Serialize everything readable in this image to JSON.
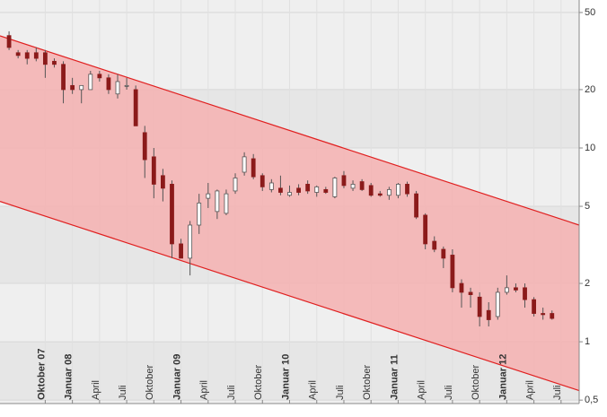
{
  "chart_data": {
    "type": "candlestick",
    "log_scale": true,
    "grid": true,
    "xlim": [
      "2007-05",
      "2012-09"
    ],
    "ylim": [
      0.48,
      58
    ],
    "yticks": [
      {
        "value": 0.5,
        "label": "0,5"
      },
      1,
      2,
      5,
      10,
      20,
      50
    ],
    "xticks": [
      {
        "value": "2007-10",
        "label": "Oktober 07"
      },
      {
        "value": "2008-01",
        "label": "Januar 08"
      },
      {
        "value": "2008-04",
        "label": "April"
      },
      {
        "value": "2008-07",
        "label": "Juli"
      },
      {
        "value": "2008-10",
        "label": "Oktober"
      },
      {
        "value": "2009-01",
        "label": "Januar 09"
      },
      {
        "value": "2009-04",
        "label": "April"
      },
      {
        "value": "2009-07",
        "label": "Juli"
      },
      {
        "value": "2009-10",
        "label": "Oktober"
      },
      {
        "value": "2010-01",
        "label": "Januar 10"
      },
      {
        "value": "2010-04",
        "label": "April"
      },
      {
        "value": "2010-07",
        "label": "Juli"
      },
      {
        "value": "2010-10",
        "label": "Oktober"
      },
      {
        "value": "2011-01",
        "label": "Januar 11"
      },
      {
        "value": "2011-04",
        "label": "April"
      },
      {
        "value": "2011-07",
        "label": "Juli"
      },
      {
        "value": "2011-10",
        "label": "Oktober"
      },
      {
        "value": "2012-01",
        "label": "Januar 12"
      },
      {
        "value": "2012-04",
        "label": "April"
      },
      {
        "value": "2012-07",
        "label": "Juli"
      }
    ],
    "up_color": "#ffffff",
    "down_color": "#8b1a1a",
    "channel": {
      "color": "#e02020",
      "fill": "#f4b0b0",
      "upper": [
        37.9,
        4.0
      ],
      "lower": [
        5.3,
        0.56
      ]
    },
    "candles": {
      "x": [
        "2007-06",
        "2007-07",
        "2007-08",
        "2007-09",
        "2007-10",
        "2007-11",
        "2007-12",
        "2008-01",
        "2008-02",
        "2008-03",
        "2008-04",
        "2008-05",
        "2008-06",
        "2008-07",
        "2008-08",
        "2008-09",
        "2008-10",
        "2008-11",
        "2008-12",
        "2009-01",
        "2009-02",
        "2009-03",
        "2009-04",
        "2009-05",
        "2009-06",
        "2009-07",
        "2009-08",
        "2009-09",
        "2009-10",
        "2009-11",
        "2009-12",
        "2010-01",
        "2010-02",
        "2010-03",
        "2010-04",
        "2010-05",
        "2010-06",
        "2010-07",
        "2010-08",
        "2010-09",
        "2010-10",
        "2010-11",
        "2010-12",
        "2011-01",
        "2011-02",
        "2011-03",
        "2011-04",
        "2011-05",
        "2011-06",
        "2011-07",
        "2011-08",
        "2011-09",
        "2011-10",
        "2011-11",
        "2011-12",
        "2012-01",
        "2012-02",
        "2012-03",
        "2012-04",
        "2012-05",
        "2012-06"
      ],
      "open": [
        38,
        31,
        31,
        31,
        31,
        28,
        27,
        21,
        20,
        20,
        24,
        23,
        19,
        21,
        20,
        12,
        9,
        7.2,
        6.5,
        3.2,
        2.7,
        4,
        5.5,
        4.7,
        4.6,
        6,
        7.5,
        8.8,
        7.2,
        6.1,
        6.2,
        5.7,
        6.2,
        6.5,
        5.9,
        6.1,
        5.6,
        7.2,
        6.2,
        6.7,
        6.4,
        5.8,
        5.7,
        5.7,
        6.5,
        5.8,
        4.5,
        3.3,
        3.0,
        2.8,
        2,
        1.8,
        1.7,
        1.45,
        1.35,
        1.8,
        1.9,
        1.9,
        1.65,
        1.4,
        1.4
      ],
      "high": [
        40,
        32,
        32,
        33,
        32,
        29,
        28,
        23,
        21,
        25,
        25,
        24,
        24,
        23,
        21,
        13,
        10,
        7.8,
        6.8,
        3.4,
        4.2,
        5.8,
        6.6,
        6.1,
        6.1,
        7.4,
        9.5,
        9.3,
        7.4,
        6.9,
        7.2,
        6.4,
        6.5,
        6.8,
        6.4,
        6.3,
        7.1,
        7.6,
        6.8,
        6.9,
        6.6,
        6,
        6.3,
        6.6,
        6.7,
        6,
        4.6,
        3.5,
        3.1,
        3,
        2.1,
        1.9,
        1.8,
        1.6,
        1.9,
        2.2,
        2,
        2,
        1.7,
        1.5,
        1.45
      ],
      "low": [
        32,
        29,
        27,
        28,
        23,
        26,
        17,
        19,
        17,
        20,
        22,
        19,
        18,
        20,
        13,
        7,
        5.5,
        5.3,
        2.7,
        2.7,
        2.2,
        3.6,
        4.9,
        4.3,
        4.5,
        5.8,
        7.2,
        6.9,
        6,
        5.9,
        5.7,
        5.6,
        5.7,
        5.8,
        5.6,
        5.8,
        5.5,
        6.2,
        6,
        6,
        5.6,
        5.6,
        5.4,
        5.5,
        5.6,
        4.3,
        3,
        2.9,
        2.4,
        1.8,
        1.5,
        1.5,
        1.2,
        1.2,
        1.3,
        1.75,
        1.8,
        1.5,
        1.35,
        1.3,
        1.3
      ],
      "close": [
        33,
        30,
        29,
        29,
        27,
        27,
        20,
        20,
        21,
        24,
        23,
        20,
        22,
        21,
        13,
        8.7,
        6.5,
        6.2,
        3.2,
        2.7,
        4.0,
        5.2,
        5.8,
        6.0,
        5.8,
        7,
        9,
        7.1,
        6.3,
        6.6,
        5.9,
        5.9,
        5.9,
        6.0,
        6.3,
        5.9,
        7,
        6.4,
        6.5,
        6.1,
        5.7,
        5.7,
        6.1,
        6.5,
        5.8,
        4.4,
        3.2,
        3.0,
        2.7,
        1.9,
        1.8,
        1.75,
        1.35,
        1.3,
        1.8,
        1.9,
        1.85,
        1.65,
        1.4,
        1.38,
        1.32
      ]
    }
  }
}
